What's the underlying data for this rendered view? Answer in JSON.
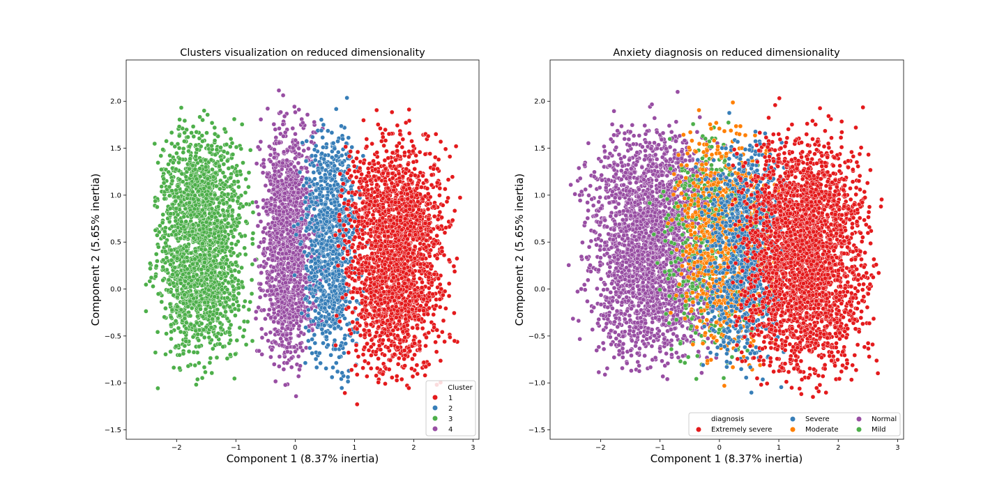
{
  "palette": {
    "red": "#e41a1c",
    "blue": "#377eb8",
    "green": "#4daf4a",
    "purple": "#984ea3",
    "orange": "#ff7f00"
  },
  "chart_data": [
    {
      "type": "scatter",
      "title": "Clusters visualization on reduced dimensionality",
      "xlabel": "Component 1 (8.37% inertia)",
      "ylabel": "Component 2 (5.65% inertia)",
      "xlim": [
        -2.85,
        3.1
      ],
      "ylim": [
        -1.6,
        2.44
      ],
      "xticks": [
        -2,
        -1,
        0,
        1,
        2,
        3
      ],
      "yticks": [
        -1.5,
        -1.0,
        -0.5,
        0.0,
        0.5,
        1.0,
        1.5,
        2.0
      ],
      "xtick_labels": [
        "−2",
        "−1",
        "0",
        "1",
        "2",
        "3"
      ],
      "ytick_labels": [
        "−1.5",
        "−1.0",
        "−0.5",
        "0.0",
        "0.5",
        "1.0",
        "1.5",
        "2.0"
      ],
      "grid": false,
      "legend": {
        "title": "Cluster",
        "placement": "lower right",
        "columns": 1,
        "entries": [
          {
            "label": "1",
            "color": "#e41a1c"
          },
          {
            "label": "2",
            "color": "#377eb8"
          },
          {
            "label": "3",
            "color": "#4daf4a"
          },
          {
            "label": "4",
            "color": "#984ea3"
          }
        ]
      },
      "series": [
        {
          "name": "3",
          "color": "#4daf4a",
          "x_range": [
            -2.6,
            -0.55
          ],
          "y_range": [
            -1.22,
            2.2
          ],
          "approx_points": 7000
        },
        {
          "name": "4",
          "color": "#984ea3",
          "x_range": [
            -0.8,
            0.55
          ],
          "y_range": [
            -1.33,
            2.3
          ],
          "approx_points": 5000
        },
        {
          "name": "2",
          "color": "#377eb8",
          "x_range": [
            -0.05,
            1.25
          ],
          "y_range": [
            -1.3,
            2.2
          ],
          "approx_points": 3500
        },
        {
          "name": "1",
          "color": "#e41a1c",
          "x_range": [
            0.55,
            2.85
          ],
          "y_range": [
            -1.42,
            2.12
          ],
          "approx_points": 8000
        }
      ]
    },
    {
      "type": "scatter",
      "title": "Anxiety diagnosis on reduced dimensionality",
      "xlabel": "Component 1 (8.37% inertia)",
      "ylabel": "Component 2 (5.65% inertia)",
      "xlim": [
        -2.85,
        3.1
      ],
      "ylim": [
        -1.6,
        2.44
      ],
      "xticks": [
        -2,
        -1,
        0,
        1,
        2,
        3
      ],
      "yticks": [
        -1.5,
        -1.0,
        -0.5,
        0.0,
        0.5,
        1.0,
        1.5,
        2.0
      ],
      "xtick_labels": [
        "−2",
        "−1",
        "0",
        "1",
        "2",
        "3"
      ],
      "ytick_labels": [
        "−1.5",
        "−1.0",
        "−0.5",
        "0.0",
        "0.5",
        "1.0",
        "1.5",
        "2.0"
      ],
      "grid": false,
      "legend": {
        "title": "diagnosis",
        "placement": "lower right",
        "columns": 3,
        "entries": [
          {
            "label": "Extremely severe",
            "color": "#e41a1c"
          },
          {
            "label": "Severe",
            "color": "#377eb8"
          },
          {
            "label": "Moderate",
            "color": "#ff7f00"
          },
          {
            "label": "Normal",
            "color": "#984ea3"
          },
          {
            "label": "Mild",
            "color": "#4daf4a"
          }
        ]
      },
      "series": [
        {
          "name": "Normal",
          "color": "#984ea3",
          "x_range": [
            -2.6,
            0.3
          ],
          "y_range": [
            -1.22,
            2.2
          ],
          "approx_points": 9000
        },
        {
          "name": "Mild",
          "color": "#4daf4a",
          "x_range": [
            -1.3,
            1.0
          ],
          "y_range": [
            -1.2,
            2.2
          ],
          "approx_points": 1800
        },
        {
          "name": "Moderate",
          "color": "#ff7f00",
          "x_range": [
            -1.0,
            1.2
          ],
          "y_range": [
            -1.25,
            2.3
          ],
          "approx_points": 3000
        },
        {
          "name": "Severe",
          "color": "#377eb8",
          "x_range": [
            -0.6,
            1.45
          ],
          "y_range": [
            -1.3,
            2.1
          ],
          "approx_points": 3000
        },
        {
          "name": "Extremely severe",
          "color": "#e41a1c",
          "x_range": [
            0.0,
            2.85
          ],
          "y_range": [
            -1.42,
            2.12
          ],
          "approx_points": 10000
        }
      ]
    }
  ]
}
